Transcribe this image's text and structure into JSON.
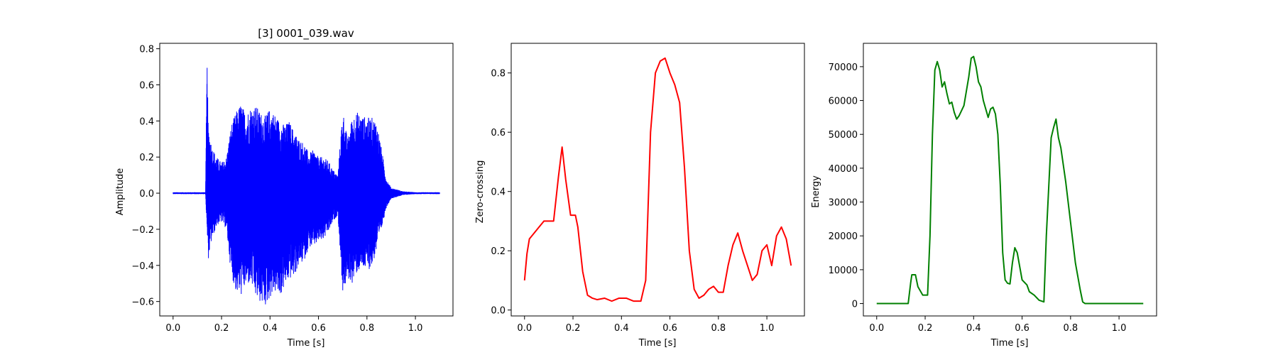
{
  "chart_data": [
    {
      "type": "line",
      "title": "[3] 0001_039.wav",
      "xlabel": "Time [s]",
      "ylabel": "Amplitude",
      "xlim": [
        -0.055,
        1.155
      ],
      "ylim": [
        -0.68,
        0.83
      ],
      "xticks": [
        0.0,
        0.2,
        0.4,
        0.6,
        0.8,
        1.0
      ],
      "yticks": [
        -0.6,
        -0.4,
        -0.2,
        0.0,
        0.2,
        0.4,
        0.6,
        0.8
      ],
      "xtick_labels": [
        "0.0",
        "0.2",
        "0.4",
        "0.6",
        "0.8",
        "1.0"
      ],
      "ytick_labels": [
        "−0.6",
        "−0.4",
        "−0.2",
        "0.0",
        "0.2",
        "0.4",
        "0.6",
        "0.8"
      ],
      "color": "#0000ff",
      "style": "waveform",
      "envelope": {
        "x": [
          0.0,
          0.134,
          0.14,
          0.145,
          0.16,
          0.18,
          0.2,
          0.22,
          0.24,
          0.26,
          0.28,
          0.3,
          0.32,
          0.34,
          0.36,
          0.38,
          0.4,
          0.42,
          0.44,
          0.46,
          0.48,
          0.5,
          0.52,
          0.54,
          0.56,
          0.58,
          0.6,
          0.62,
          0.64,
          0.66,
          0.68,
          0.7,
          0.71,
          0.72,
          0.74,
          0.76,
          0.78,
          0.8,
          0.82,
          0.84,
          0.86,
          0.88,
          0.9,
          0.95,
          1.0,
          1.1
        ],
        "upper": [
          0.005,
          0.005,
          0.76,
          0.38,
          0.26,
          0.2,
          0.17,
          0.2,
          0.38,
          0.45,
          0.5,
          0.44,
          0.48,
          0.49,
          0.45,
          0.43,
          0.47,
          0.44,
          0.4,
          0.38,
          0.4,
          0.34,
          0.3,
          0.28,
          0.22,
          0.24,
          0.2,
          0.2,
          0.18,
          0.13,
          0.1,
          0.47,
          0.38,
          0.3,
          0.43,
          0.45,
          0.43,
          0.42,
          0.42,
          0.4,
          0.25,
          0.08,
          0.03,
          0.01,
          0.005,
          0.005
        ],
        "lower": [
          -0.005,
          -0.005,
          -0.22,
          -0.37,
          -0.26,
          -0.18,
          -0.16,
          -0.2,
          -0.45,
          -0.55,
          -0.57,
          -0.52,
          -0.5,
          -0.58,
          -0.61,
          -0.63,
          -0.58,
          -0.55,
          -0.58,
          -0.52,
          -0.48,
          -0.46,
          -0.4,
          -0.38,
          -0.3,
          -0.3,
          -0.27,
          -0.26,
          -0.22,
          -0.16,
          -0.12,
          -0.55,
          -0.52,
          -0.48,
          -0.5,
          -0.44,
          -0.42,
          -0.43,
          -0.41,
          -0.32,
          -0.2,
          -0.08,
          -0.03,
          -0.01,
          -0.005,
          -0.005
        ]
      }
    },
    {
      "type": "line",
      "title": "",
      "xlabel": "Time [s]",
      "ylabel": "Zero-crossing",
      "xlim": [
        -0.055,
        1.155
      ],
      "ylim": [
        -0.02,
        0.9
      ],
      "xticks": [
        0.0,
        0.2,
        0.4,
        0.6,
        0.8,
        1.0
      ],
      "yticks": [
        0.0,
        0.2,
        0.4,
        0.6,
        0.8
      ],
      "xtick_labels": [
        "0.0",
        "0.2",
        "0.4",
        "0.6",
        "0.8",
        "1.0"
      ],
      "ytick_labels": [
        "0.0",
        "0.2",
        "0.4",
        "0.6",
        "0.8"
      ],
      "color": "#ff0000",
      "x": [
        0.0,
        0.01,
        0.02,
        0.04,
        0.06,
        0.08,
        0.1,
        0.12,
        0.14,
        0.155,
        0.17,
        0.19,
        0.21,
        0.22,
        0.24,
        0.26,
        0.28,
        0.3,
        0.33,
        0.36,
        0.39,
        0.42,
        0.45,
        0.48,
        0.5,
        0.52,
        0.54,
        0.56,
        0.58,
        0.6,
        0.62,
        0.64,
        0.66,
        0.68,
        0.7,
        0.72,
        0.74,
        0.76,
        0.78,
        0.8,
        0.82,
        0.84,
        0.86,
        0.88,
        0.9,
        0.92,
        0.94,
        0.96,
        0.98,
        1.0,
        1.02,
        1.04,
        1.06,
        1.08,
        1.1
      ],
      "y": [
        0.1,
        0.19,
        0.24,
        0.26,
        0.28,
        0.3,
        0.3,
        0.3,
        0.45,
        0.55,
        0.44,
        0.32,
        0.32,
        0.28,
        0.13,
        0.05,
        0.04,
        0.035,
        0.04,
        0.03,
        0.04,
        0.04,
        0.03,
        0.03,
        0.1,
        0.6,
        0.8,
        0.84,
        0.85,
        0.8,
        0.76,
        0.7,
        0.48,
        0.2,
        0.07,
        0.04,
        0.05,
        0.07,
        0.08,
        0.06,
        0.06,
        0.15,
        0.22,
        0.26,
        0.2,
        0.15,
        0.1,
        0.12,
        0.2,
        0.22,
        0.15,
        0.25,
        0.28,
        0.24,
        0.15
      ]
    },
    {
      "type": "line",
      "title": "",
      "xlabel": "Time [s]",
      "ylabel": "Energy",
      "xlim": [
        -0.055,
        1.155
      ],
      "ylim": [
        -3660,
        76900
      ],
      "xticks": [
        0.0,
        0.2,
        0.4,
        0.6,
        0.8,
        1.0
      ],
      "yticks": [
        0,
        10000,
        20000,
        30000,
        40000,
        50000,
        60000,
        70000
      ],
      "xtick_labels": [
        "0.0",
        "0.2",
        "0.4",
        "0.6",
        "0.8",
        "1.0"
      ],
      "ytick_labels": [
        "0",
        "10000",
        "20000",
        "30000",
        "40000",
        "50000",
        "60000",
        "70000"
      ],
      "color": "#008000",
      "x": [
        0.0,
        0.13,
        0.14,
        0.145,
        0.16,
        0.17,
        0.19,
        0.21,
        0.22,
        0.23,
        0.24,
        0.25,
        0.26,
        0.27,
        0.28,
        0.29,
        0.3,
        0.31,
        0.32,
        0.33,
        0.34,
        0.36,
        0.38,
        0.39,
        0.4,
        0.41,
        0.42,
        0.43,
        0.44,
        0.46,
        0.47,
        0.48,
        0.49,
        0.5,
        0.51,
        0.52,
        0.53,
        0.54,
        0.55,
        0.56,
        0.57,
        0.58,
        0.6,
        0.62,
        0.63,
        0.65,
        0.67,
        0.69,
        0.7,
        0.72,
        0.73,
        0.74,
        0.75,
        0.76,
        0.78,
        0.8,
        0.82,
        0.84,
        0.85,
        0.86,
        0.9,
        1.0,
        1.1
      ],
      "y": [
        0,
        0,
        6000,
        8500,
        8500,
        5000,
        2500,
        2500,
        20000,
        50000,
        69000,
        71500,
        69000,
        64000,
        65500,
        62000,
        59000,
        59500,
        56500,
        54500,
        55500,
        58500,
        67000,
        72500,
        73000,
        70000,
        65500,
        64000,
        60000,
        55000,
        57500,
        58000,
        56000,
        50000,
        35000,
        15000,
        7000,
        6000,
        5800,
        12000,
        16500,
        15000,
        7000,
        5500,
        3500,
        2500,
        1000,
        500,
        20000,
        49000,
        52000,
        54500,
        49000,
        46000,
        36000,
        24000,
        12000,
        4000,
        500,
        0,
        0,
        0,
        0
      ]
    }
  ]
}
